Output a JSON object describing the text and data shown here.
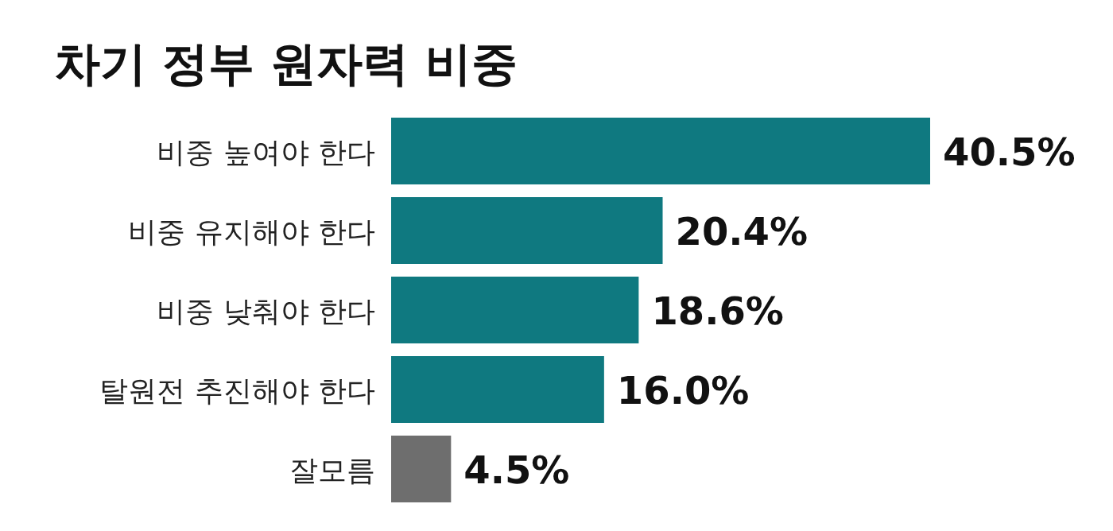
{
  "chart_data": {
    "type": "bar",
    "orientation": "horizontal",
    "title": "차기 정부 원자력 비중",
    "categories": [
      "비중 높여야 한다",
      "비중 유지해야 한다",
      "비중 낮춰야 한다",
      "탈원전 추진해야 한다",
      "잘모름"
    ],
    "values": [
      40.5,
      20.4,
      18.6,
      16.0,
      4.5
    ],
    "colors": [
      "#0f7980",
      "#0f7980",
      "#0f7980",
      "#0f7980",
      "#6e6e6e"
    ],
    "value_labels": [
      "40.5%",
      "20.4%",
      "18.6%",
      "16.0%",
      "4.5%"
    ]
  }
}
